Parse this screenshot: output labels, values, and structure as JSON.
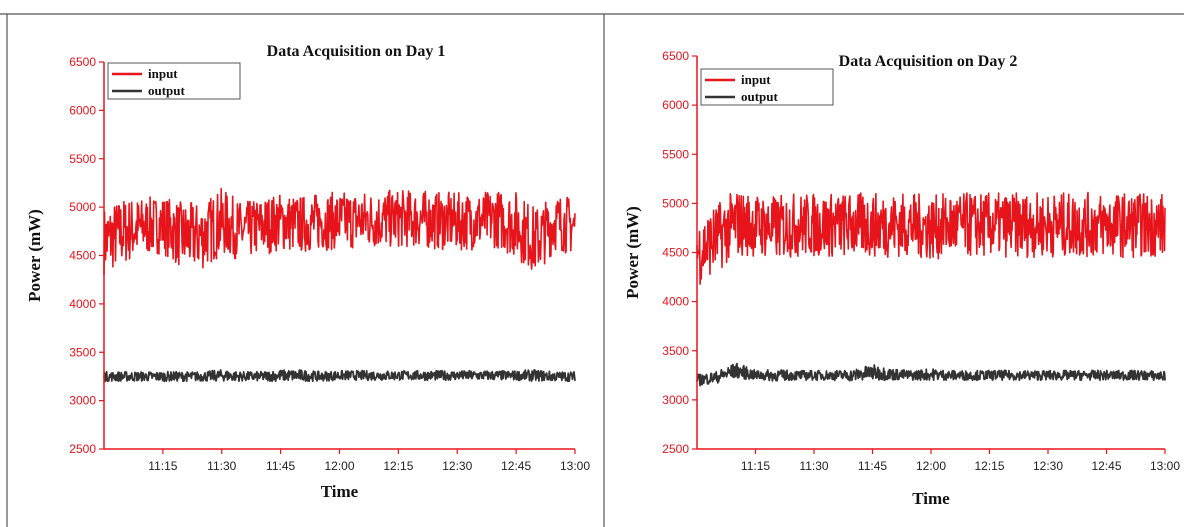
{
  "chart_data": [
    {
      "type": "line",
      "title": "Data Acquisition on Day 1",
      "xlabel": "Time",
      "ylabel": "Power (mW)",
      "xlim": [
        "11:00",
        "13:00"
      ],
      "ylim": [
        2500,
        6500
      ],
      "xticks": [
        "11:15",
        "11:30",
        "11:45",
        "12:00",
        "12:15",
        "12:30",
        "12:45",
        "13:00"
      ],
      "yticks": [
        2500,
        3000,
        3500,
        4000,
        4500,
        5000,
        5500,
        6000,
        6500
      ],
      "legend_position": "top-left",
      "grid": false,
      "series": [
        {
          "name": "input",
          "color": "#e8141b",
          "x": [
            "11:00",
            "11:05",
            "11:10",
            "11:15",
            "11:20",
            "11:25",
            "11:30",
            "11:35",
            "11:40",
            "11:45",
            "11:50",
            "11:55",
            "12:00",
            "12:05",
            "12:10",
            "12:15",
            "12:20",
            "12:25",
            "12:30",
            "12:35",
            "12:40",
            "12:45",
            "12:50",
            "12:55",
            "13:00"
          ],
          "mean": [
            4650,
            4750,
            4800,
            4820,
            4700,
            4700,
            4850,
            4750,
            4800,
            4850,
            4820,
            4850,
            4860,
            4870,
            4870,
            4880,
            4880,
            4860,
            4850,
            4860,
            4880,
            4820,
            4650,
            4850,
            4800
          ],
          "band": [
            350,
            350,
            300,
            300,
            350,
            350,
            350,
            300,
            300,
            300,
            300,
            300,
            300,
            300,
            300,
            300,
            300,
            300,
            300,
            300,
            300,
            350,
            350,
            300,
            300
          ]
        },
        {
          "name": "output",
          "color": "#333333",
          "x": [
            "11:00",
            "11:05",
            "11:10",
            "11:15",
            "11:20",
            "11:25",
            "11:30",
            "11:35",
            "11:40",
            "11:45",
            "11:50",
            "11:55",
            "12:00",
            "12:05",
            "12:10",
            "12:15",
            "12:20",
            "12:25",
            "12:30",
            "12:35",
            "12:40",
            "12:45",
            "12:50",
            "12:55",
            "13:00"
          ],
          "mean": [
            3250,
            3250,
            3250,
            3250,
            3250,
            3250,
            3260,
            3250,
            3250,
            3260,
            3260,
            3250,
            3260,
            3260,
            3260,
            3260,
            3260,
            3260,
            3260,
            3260,
            3260,
            3260,
            3260,
            3250,
            3250
          ],
          "band": [
            50,
            50,
            50,
            50,
            50,
            50,
            60,
            50,
            50,
            60,
            60,
            50,
            50,
            50,
            50,
            50,
            50,
            50,
            50,
            50,
            50,
            50,
            60,
            50,
            50
          ]
        }
      ]
    },
    {
      "type": "line",
      "title": "Data Acquisition on Day 2",
      "xlabel": "Time",
      "ylabel": "Power (mW)",
      "xlim": [
        "11:00",
        "13:00"
      ],
      "ylim": [
        2500,
        6500
      ],
      "xticks": [
        "11:15",
        "11:30",
        "11:45",
        "12:00",
        "12:15",
        "12:30",
        "12:45",
        "13:00"
      ],
      "yticks": [
        2500,
        3000,
        3500,
        4000,
        4500,
        5000,
        5500,
        6000,
        6500
      ],
      "legend_position": "top-left",
      "grid": false,
      "series": [
        {
          "name": "input",
          "color": "#e8141b",
          "x": [
            "11:00",
            "11:05",
            "11:10",
            "11:15",
            "11:20",
            "11:25",
            "11:30",
            "11:35",
            "11:40",
            "11:45",
            "11:50",
            "11:55",
            "12:00",
            "12:05",
            "12:10",
            "12:15",
            "12:20",
            "12:25",
            "12:30",
            "12:35",
            "12:40",
            "12:45",
            "12:50",
            "12:55",
            "13:00"
          ],
          "mean": [
            4500,
            4650,
            4800,
            4780,
            4750,
            4780,
            4780,
            4780,
            4780,
            4780,
            4780,
            4780,
            4750,
            4780,
            4780,
            4780,
            4780,
            4780,
            4780,
            4780,
            4780,
            4780,
            4780,
            4780,
            4780
          ],
          "band": [
            350,
            350,
            350,
            320,
            330,
            330,
            330,
            330,
            330,
            330,
            330,
            330,
            330,
            330,
            330,
            330,
            330,
            330,
            330,
            330,
            330,
            330,
            330,
            330,
            330
          ]
        },
        {
          "name": "output",
          "color": "#333333",
          "x": [
            "11:00",
            "11:05",
            "11:10",
            "11:15",
            "11:20",
            "11:25",
            "11:30",
            "11:35",
            "11:40",
            "11:45",
            "11:50",
            "11:55",
            "12:00",
            "12:05",
            "12:10",
            "12:15",
            "12:20",
            "12:25",
            "12:30",
            "12:35",
            "12:40",
            "12:45",
            "12:50",
            "12:55",
            "13:00"
          ],
          "mean": [
            3200,
            3230,
            3300,
            3250,
            3250,
            3250,
            3250,
            3250,
            3250,
            3280,
            3260,
            3250,
            3260,
            3250,
            3250,
            3250,
            3250,
            3250,
            3250,
            3250,
            3250,
            3250,
            3250,
            3250,
            3240
          ],
          "band": [
            60,
            60,
            80,
            50,
            60,
            50,
            50,
            50,
            60,
            80,
            60,
            50,
            60,
            50,
            50,
            50,
            50,
            50,
            50,
            50,
            50,
            50,
            50,
            50,
            50
          ]
        }
      ]
    }
  ]
}
